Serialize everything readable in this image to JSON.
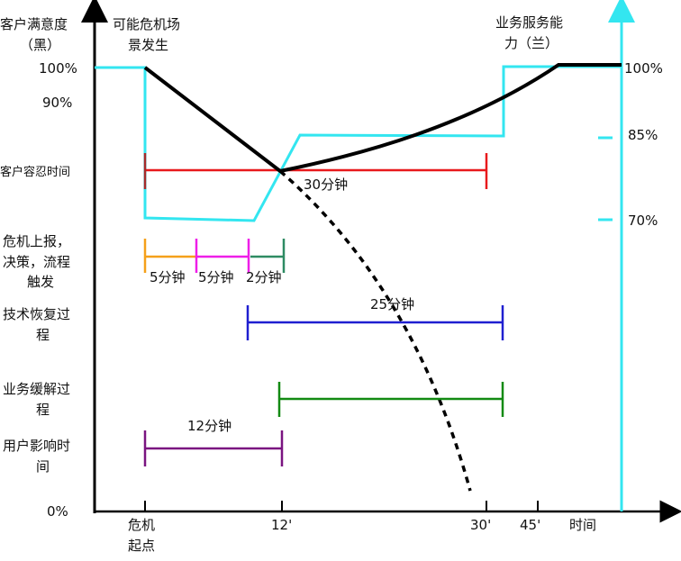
{
  "labels": {
    "left_axis_title_1": "客户满意度",
    "left_axis_title_2": "（黑）",
    "crisis_title_1": "可能危机场",
    "crisis_title_2": "景发生",
    "right_axis_title_1": "业务服务能",
    "right_axis_title_2": "力（兰）",
    "left_100": "100%",
    "left_90": "90%",
    "left_0": "0%",
    "right_100": "100%",
    "right_85": "85%",
    "right_70": "70%",
    "row_tolerance": "客户容忍时间",
    "row_report_1": "危机上报，",
    "row_report_2": "决策，流程",
    "row_report_3": "触发",
    "row_tech_1": "技术恢复过",
    "row_tech_2": "程",
    "row_biz_1": "业务缓解过",
    "row_biz_2": "程",
    "row_user_1": "用户影响时",
    "row_user_2": "间",
    "dur_30": "30分钟",
    "dur_5a": "5分钟",
    "dur_5b": "5分钟",
    "dur_2": "2分钟",
    "dur_25": "25分钟",
    "dur_12": "12分钟",
    "x_start_1": "危机",
    "x_start_2": "起点",
    "x_12": "12'",
    "x_30": "30'",
    "x_45": "45'",
    "x_time": "时间"
  },
  "colors": {
    "satisfaction": "#000000",
    "service_capability": "#33e6f0",
    "tolerance": "#e8191c",
    "report": "#f5a01a",
    "decision": "#ee1ee8",
    "trigger": "#2e8b63",
    "tech_recovery": "#1f1fd0",
    "biz_mitigation": "#138a13",
    "user_impact": "#7a1480"
  }
}
